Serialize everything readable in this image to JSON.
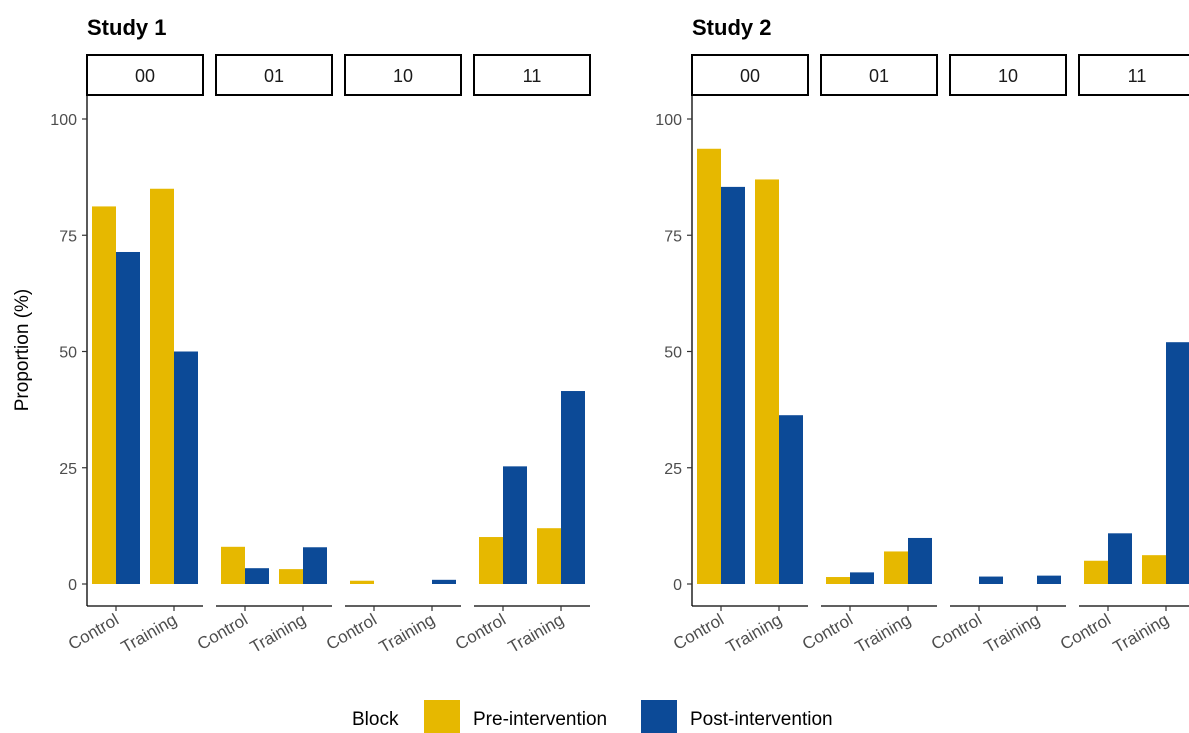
{
  "chart_data": [
    {
      "type": "bar",
      "title": "Study 1",
      "ylabel": "Proportion (%)",
      "ylim": [
        0,
        100
      ],
      "yticks": [
        0,
        25,
        50,
        75,
        100
      ],
      "facets": [
        {
          "label": "00",
          "categories": [
            "Control",
            "Training"
          ],
          "series": [
            {
              "name": "Pre-intervention",
              "values": [
                81.2,
                85.0
              ]
            },
            {
              "name": "Post-intervention",
              "values": [
                71.4,
                50.0
              ]
            }
          ]
        },
        {
          "label": "01",
          "categories": [
            "Control",
            "Training"
          ],
          "series": [
            {
              "name": "Pre-intervention",
              "values": [
                8.0,
                3.2
              ]
            },
            {
              "name": "Post-intervention",
              "values": [
                3.4,
                7.9
              ]
            }
          ]
        },
        {
          "label": "10",
          "categories": [
            "Control",
            "Training"
          ],
          "series": [
            {
              "name": "Pre-intervention",
              "values": [
                0.7,
                0.0
              ]
            },
            {
              "name": "Post-intervention",
              "values": [
                0.0,
                0.9
              ]
            }
          ]
        },
        {
          "label": "11",
          "categories": [
            "Control",
            "Training"
          ],
          "series": [
            {
              "name": "Pre-intervention",
              "values": [
                10.1,
                12.0
              ]
            },
            {
              "name": "Post-intervention",
              "values": [
                25.3,
                41.5
              ]
            }
          ]
        }
      ]
    },
    {
      "type": "bar",
      "title": "Study 2",
      "ylabel": "",
      "ylim": [
        0,
        100
      ],
      "yticks": [
        0,
        25,
        50,
        75,
        100
      ],
      "facets": [
        {
          "label": "00",
          "categories": [
            "Control",
            "Training"
          ],
          "series": [
            {
              "name": "Pre-intervention",
              "values": [
                93.6,
                87.0
              ]
            },
            {
              "name": "Post-intervention",
              "values": [
                85.4,
                36.3
              ]
            }
          ]
        },
        {
          "label": "01",
          "categories": [
            "Control",
            "Training"
          ],
          "series": [
            {
              "name": "Pre-intervention",
              "values": [
                1.5,
                7.0
              ]
            },
            {
              "name": "Post-intervention",
              "values": [
                2.5,
                9.9
              ]
            }
          ]
        },
        {
          "label": "10",
          "categories": [
            "Control",
            "Training"
          ],
          "series": [
            {
              "name": "Pre-intervention",
              "values": [
                0.0,
                0.0
              ]
            },
            {
              "name": "Post-intervention",
              "values": [
                1.6,
                1.8
              ]
            }
          ]
        },
        {
          "label": "11",
          "categories": [
            "Control",
            "Training"
          ],
          "series": [
            {
              "name": "Pre-intervention",
              "values": [
                5.0,
                6.2
              ]
            },
            {
              "name": "Post-intervention",
              "values": [
                10.9,
                52.0
              ]
            }
          ]
        }
      ]
    }
  ],
  "legend": {
    "title": "Block",
    "placement": "bottom",
    "items": [
      {
        "name": "Pre-intervention",
        "color": "#E6B800"
      },
      {
        "name": "Post-intervention",
        "color": "#0C4A97"
      }
    ]
  }
}
